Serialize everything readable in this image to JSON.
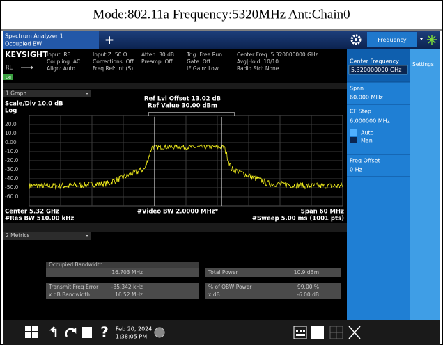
{
  "header": {
    "title": "Mode:802.11a Frequency:5320MHz Ant:Chain0"
  },
  "tab": {
    "name": "Spectrum Analyzer 1",
    "mode": "Occupied BW",
    "add": "+"
  },
  "toolbar": {
    "frequency": "Frequency"
  },
  "status": {
    "brand": "KEYSIGHT",
    "rl": "RL",
    "lxi": "LXI",
    "columns": [
      [
        "Input: RF",
        "Coupling: AC",
        "Align: Auto"
      ],
      [
        "Input Z: 50 Ω",
        "Corrections: Off",
        "Freq Ref: Int (S)"
      ],
      [
        "Atten: 30 dB",
        "Preamp: Off"
      ],
      [
        "Trig: Free Run",
        "Gate: Off",
        "IF Gain: Low"
      ],
      [
        "Center Freq: 5.320000000 GHz",
        "Avg|Hold: 10/10",
        "Radio Std: None"
      ]
    ]
  },
  "graph": {
    "menu": "1 Graph",
    "scale": "Scale/Div 10.0 dB",
    "log": "Log",
    "ref_offset": "Ref Lvl Offset 13.02 dB",
    "ref_value": "Ref Value 30.00 dBm",
    "y_labels": [
      "20.0",
      "10.0",
      "0.00",
      "-10.0",
      "-20.0",
      "-30.0",
      "-40.0",
      "-50.0",
      "-60.0"
    ],
    "center": "Center 5.32 GHz",
    "res_bw": "#Res BW 510.00 kHz",
    "video_bw": "#Video BW 2.0000 MHz*",
    "span": "Span 60 MHz",
    "sweep": "#Sweep 5.00 ms (1001 pts)"
  },
  "metrics": {
    "menu": "2 Metrics",
    "obw_label": "Occupied Bandwidth",
    "obw_value": "16.703 MHz",
    "total_power_label": "Total Power",
    "total_power_value": "10.9 dBm",
    "rows": [
      [
        "Transmit Freq Error",
        "-35.342 kHz",
        "% of OBW Power",
        "99.00 %"
      ],
      [
        "x dB Bandwidth",
        "16.52 MHz",
        "x dB",
        "-6.00 dB"
      ]
    ]
  },
  "panel": {
    "center_label": "Center Frequency",
    "center_value": "5.320000000 GHz",
    "span_label": "Span",
    "span_value": "60.000 MHz",
    "cf_step_label": "CF Step",
    "cf_step_value": "6.000000 MHz",
    "auto": "Auto",
    "man": "Man",
    "offset_label": "Freq Offset",
    "offset_value": "0 Hz",
    "settings": "Settings"
  },
  "taskbar": {
    "help": "?",
    "date": "Feb 20, 2024",
    "time": "1:38:05 PM"
  }
}
